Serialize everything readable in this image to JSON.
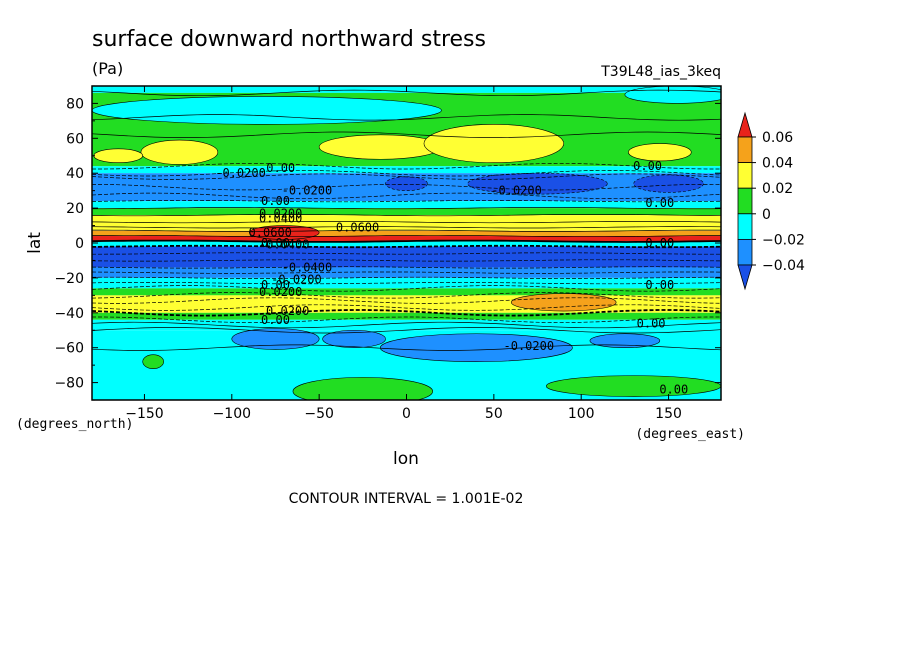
{
  "chart_data": {
    "type": "heatmap",
    "title": "surface downward northward stress",
    "units": "(Pa)",
    "run_label": "T39L48_ias_3keq",
    "xlabel": "lon",
    "ylabel": "lat",
    "x_units": "(degrees_east)",
    "y_units": "(degrees_north)",
    "xlim": [
      -180,
      180
    ],
    "ylim": [
      -90,
      90
    ],
    "x_ticks": [
      -150,
      -100,
      -50,
      0,
      50,
      100,
      150
    ],
    "x_tick_labels": [
      "-150",
      "-100",
      "-50",
      "0",
      "50",
      "100",
      "150"
    ],
    "y_ticks": [
      80,
      60,
      40,
      20,
      0,
      -20,
      -40,
      -60,
      -80
    ],
    "y_tick_labels": [
      "80",
      "60",
      "40",
      "20",
      "0",
      "-20",
      "-40",
      "-60",
      "-80"
    ],
    "footer": "CONTOUR INTERVAL = 1.001E-02",
    "colorbar": {
      "levels": [
        0.06,
        0.04,
        0.02,
        0,
        -0.02,
        -0.04
      ],
      "labels": [
        "0.06",
        "0.04",
        "0.02",
        "0",
        "-0.02",
        "-0.04"
      ],
      "colors": {
        "c_gt06": "#e8231b",
        "c_04_06": "#f5a21b",
        "c_02_04": "#ffff33",
        "c_00_02": "#22dd22",
        "c_m02_00": "#00ffff",
        "c_m04_m02": "#1e90ff",
        "c_lt_m04": "#1a50e6"
      }
    },
    "zonal_bands": [
      {
        "lat_from": 90,
        "lat_to": 86,
        "level": "c_m02_00"
      },
      {
        "lat_from": 86,
        "lat_to": 44,
        "level": "c_00_02"
      },
      {
        "lat_from": 44,
        "lat_to": 40,
        "level": "c_m02_00"
      },
      {
        "lat_from": 40,
        "lat_to": 24,
        "level": "c_m04_m02"
      },
      {
        "lat_from": 24,
        "lat_to": 20,
        "level": "c_m02_00"
      },
      {
        "lat_from": 20,
        "lat_to": 16,
        "level": "c_00_02"
      },
      {
        "lat_from": 16,
        "lat_to": 7,
        "level": "c_02_04"
      },
      {
        "lat_from": 7,
        "lat_to": 4,
        "level": "c_04_06"
      },
      {
        "lat_from": 4,
        "lat_to": 1,
        "level": "c_gt06"
      },
      {
        "lat_from": 1,
        "lat_to": -2,
        "level": "c_m02_00"
      },
      {
        "lat_from": -2,
        "lat_to": -14,
        "level": "c_lt_m04"
      },
      {
        "lat_from": -14,
        "lat_to": -20,
        "level": "c_m04_m02"
      },
      {
        "lat_from": -20,
        "lat_to": -26,
        "level": "c_m02_00"
      },
      {
        "lat_from": -26,
        "lat_to": -30,
        "level": "c_00_02"
      },
      {
        "lat_from": -30,
        "lat_to": -40,
        "level": "c_02_04"
      },
      {
        "lat_from": -40,
        "lat_to": -44,
        "level": "c_00_02"
      },
      {
        "lat_from": -44,
        "lat_to": -50,
        "level": "c_m02_00"
      },
      {
        "lat_from": -50,
        "lat_to": -90,
        "level": "c_m02_00"
      }
    ],
    "features": [
      {
        "lon": -80,
        "lat": 76,
        "rlon": 100,
        "rlat": 8,
        "level": "c_m02_00"
      },
      {
        "lon": 155,
        "lat": 85,
        "rlon": 30,
        "rlat": 5,
        "level": "c_m02_00"
      },
      {
        "lon": -130,
        "lat": 52,
        "rlon": 22,
        "rlat": 7,
        "level": "c_02_04"
      },
      {
        "lon": -15,
        "lat": 55,
        "rlon": 35,
        "rlat": 7,
        "level": "c_02_04"
      },
      {
        "lon": 50,
        "lat": 57,
        "rlon": 40,
        "rlat": 11,
        "level": "c_02_04"
      },
      {
        "lon": 145,
        "lat": 52,
        "rlon": 18,
        "rlat": 5,
        "level": "c_02_04"
      },
      {
        "lon": -165,
        "lat": 50,
        "rlon": 14,
        "rlat": 4,
        "level": "c_02_04"
      },
      {
        "lon": 0,
        "lat": 34,
        "rlon": 12,
        "rlat": 4,
        "level": "c_lt_m04"
      },
      {
        "lon": 75,
        "lat": 34,
        "rlon": 40,
        "rlat": 6,
        "level": "c_lt_m04"
      },
      {
        "lon": 150,
        "lat": 34,
        "rlon": 20,
        "rlat": 5,
        "level": "c_lt_m04"
      },
      {
        "lon": -70,
        "lat": 6,
        "rlon": 20,
        "rlat": 4,
        "level": "c_gt06"
      },
      {
        "lon": 90,
        "lat": -34,
        "rlon": 30,
        "rlat": 5,
        "level": "c_04_06"
      },
      {
        "lon": -75,
        "lat": -55,
        "rlon": 25,
        "rlat": 6,
        "level": "c_m04_m02"
      },
      {
        "lon": -30,
        "lat": -55,
        "rlon": 18,
        "rlat": 5,
        "level": "c_m04_m02"
      },
      {
        "lon": 40,
        "lat": -60,
        "rlon": 55,
        "rlat": 8,
        "level": "c_m04_m02"
      },
      {
        "lon": 125,
        "lat": -56,
        "rlon": 20,
        "rlat": 4,
        "level": "c_m04_m02"
      },
      {
        "lon": -25,
        "lat": -85,
        "rlon": 40,
        "rlat": 8,
        "level": "c_00_02"
      },
      {
        "lon": 130,
        "lat": -82,
        "rlon": 50,
        "rlat": 6,
        "level": "c_00_02"
      },
      {
        "lon": -145,
        "lat": -68,
        "rlon": 6,
        "rlat": 4,
        "level": "c_00_02"
      }
    ],
    "contour_labels": [
      {
        "text": "-0.0200",
        "lon": -95,
        "lat": 40
      },
      {
        "text": "0.00",
        "lon": -72,
        "lat": 43
      },
      {
        "text": "-0.0200",
        "lon": -57,
        "lat": 30
      },
      {
        "text": "0.00",
        "lon": -75,
        "lat": 24
      },
      {
        "text": "0.0200",
        "lon": -72,
        "lat": 17
      },
      {
        "text": "0.0400",
        "lon": -72,
        "lat": 14
      },
      {
        "text": "0.0600",
        "lon": -28,
        "lat": 9
      },
      {
        "text": "0.0600",
        "lon": -78,
        "lat": 6
      },
      {
        "text": "0.00",
        "lon": -75,
        "lat": 0
      },
      {
        "text": "-0.0400",
        "lon": -70,
        "lat": -1
      },
      {
        "text": "-0.0400",
        "lon": -57,
        "lat": -14
      },
      {
        "text": "-0.0200",
        "lon": -63,
        "lat": -21
      },
      {
        "text": "0.00",
        "lon": -75,
        "lat": -24
      },
      {
        "text": "0.0200",
        "lon": -72,
        "lat": -28
      },
      {
        "text": "0.0200",
        "lon": -68,
        "lat": -39
      },
      {
        "text": "0.00",
        "lon": -75,
        "lat": -44
      },
      {
        "text": "-0.0200",
        "lon": 63,
        "lat": 30
      },
      {
        "text": "0.00",
        "lon": 138,
        "lat": 44
      },
      {
        "text": "0.00",
        "lon": 145,
        "lat": 23
      },
      {
        "text": "0.00",
        "lon": 145,
        "lat": 0
      },
      {
        "text": "0.00",
        "lon": 145,
        "lat": -24
      },
      {
        "text": "0.00",
        "lon": 140,
        "lat": -46
      },
      {
        "text": "-0.0200",
        "lon": 70,
        "lat": -59
      },
      {
        "text": "0.00",
        "lon": 153,
        "lat": -84
      }
    ]
  }
}
